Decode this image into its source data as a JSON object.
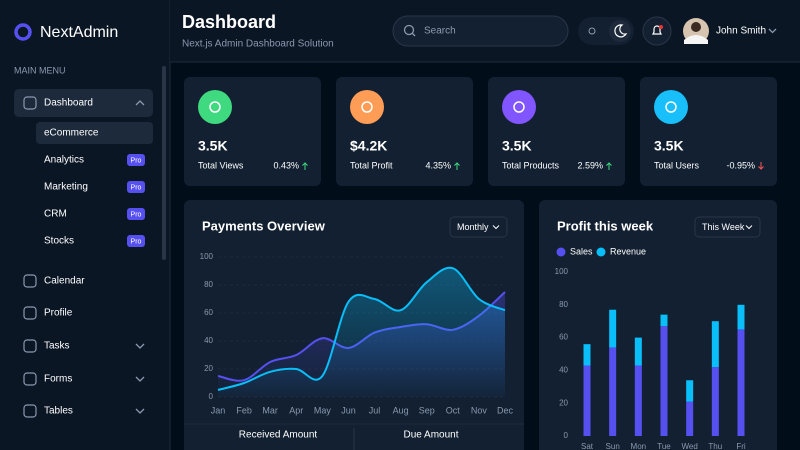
{
  "brand": "NextAdmin",
  "sidebar": {
    "section": "MAIN MENU",
    "items": [
      {
        "label": "Dashboard",
        "expanded": true,
        "children": [
          {
            "label": "eCommerce",
            "active": true
          },
          {
            "label": "Analytics",
            "badge": "Pro"
          },
          {
            "label": "Marketing",
            "badge": "Pro"
          },
          {
            "label": "CRM",
            "badge": "Pro"
          },
          {
            "label": "Stocks",
            "badge": "Pro"
          }
        ]
      },
      {
        "label": "Calendar"
      },
      {
        "label": "Profile"
      },
      {
        "label": "Tasks",
        "expandable": true
      },
      {
        "label": "Forms",
        "expandable": true
      },
      {
        "label": "Tables",
        "expandable": true
      }
    ]
  },
  "header": {
    "title": "Dashboard",
    "subtitle": "Next.js Admin Dashboard Solution",
    "search_placeholder": "Search",
    "user": "John Smith"
  },
  "stats": [
    {
      "value": "3.5K",
      "label": "Total Views",
      "change": "0.43%",
      "trend": "up",
      "color": "#3fd97f"
    },
    {
      "value": "$4.2K",
      "label": "Total Profit",
      "change": "4.35%",
      "trend": "up",
      "color": "#ff9c55"
    },
    {
      "value": "3.5K",
      "label": "Total Products",
      "change": "2.59%",
      "trend": "up",
      "color": "#8155ff"
    },
    {
      "value": "3.5K",
      "label": "Total Users",
      "change": "-0.95%",
      "trend": "down",
      "color": "#18bffa"
    }
  ],
  "chart_data": [
    {
      "type": "area",
      "title": "Payments Overview",
      "dropdown": "Monthly",
      "categories": [
        "Jan",
        "Feb",
        "Mar",
        "Apr",
        "May",
        "Jun",
        "Jul",
        "Aug",
        "Sep",
        "Oct",
        "Nov",
        "Dec"
      ],
      "series": [
        {
          "color": "#5750f1",
          "values": [
            15,
            12,
            25,
            30,
            42,
            35,
            46,
            50,
            52,
            48,
            58,
            75
          ]
        },
        {
          "color": "#0abef9",
          "values": [
            5,
            10,
            18,
            20,
            15,
            68,
            70,
            62,
            82,
            92,
            70,
            62
          ]
        }
      ],
      "ylim": [
        0,
        100
      ],
      "yticks": [
        0,
        20,
        40,
        60,
        80,
        100
      ],
      "grid": true,
      "summary": [
        "Received Amount",
        "Due Amount"
      ]
    },
    {
      "type": "stacked_bar",
      "title": "Profit this week",
      "dropdown": "This Week",
      "categories": [
        "Sat",
        "Sun",
        "Mon",
        "Tue",
        "Wed",
        "Thu",
        "Fri"
      ],
      "series": [
        {
          "name": "Sales",
          "color": "#5750f1",
          "values": [
            43,
            54,
            43,
            67,
            21,
            42,
            65
          ]
        },
        {
          "name": "Revenue",
          "color": "#0abef9",
          "values": [
            13,
            23,
            17,
            7,
            13,
            28,
            15
          ]
        }
      ],
      "ylim": [
        0,
        100
      ],
      "yticks": [
        0,
        20,
        40,
        60,
        80,
        100
      ],
      "grid": false
    }
  ]
}
